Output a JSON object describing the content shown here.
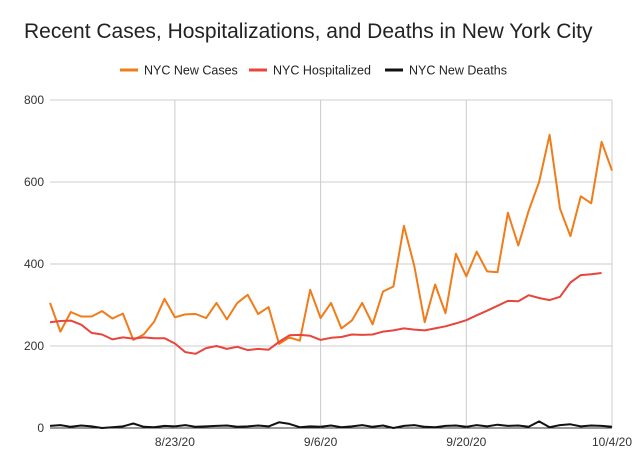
{
  "chart_data": {
    "type": "line",
    "title": "Recent Cases, Hospitalizations, and Deaths in New York City",
    "xlabel": "",
    "ylabel": "",
    "ylim": [
      0,
      800
    ],
    "yticks": [
      "0",
      "200",
      "400",
      "600",
      "800"
    ],
    "xticks": [
      {
        "index": 12,
        "label": "8/23/20"
      },
      {
        "index": 26,
        "label": "9/6/20"
      },
      {
        "index": 40,
        "label": "9/20/20"
      },
      {
        "index": 54,
        "label": "10/4/20"
      }
    ],
    "legend_position": "top",
    "grid": "vertical-and-horizontal",
    "series": [
      {
        "name": "NYC New Cases",
        "color": "#f07c1a",
        "values": [
          305,
          235,
          283,
          272,
          272,
          285,
          267,
          279,
          215,
          228,
          259,
          315,
          270,
          277,
          278,
          268,
          305,
          265,
          305,
          325,
          278,
          295,
          205,
          221,
          213,
          337,
          268,
          305,
          243,
          262,
          305,
          253,
          333,
          345,
          493,
          395,
          258,
          350,
          280,
          425,
          370,
          430,
          382,
          380,
          525,
          445,
          530,
          600,
          715,
          535,
          468,
          565,
          548,
          698,
          628
        ]
      },
      {
        "name": "NYC Hospitalized",
        "color": "#e8453c",
        "values": [
          258,
          261,
          262,
          252,
          232,
          228,
          216,
          221,
          218,
          221,
          219,
          219,
          206,
          185,
          181,
          195,
          200,
          193,
          198,
          190,
          193,
          191,
          210,
          226,
          227,
          225,
          215,
          220,
          222,
          228,
          227,
          228,
          235,
          238,
          243,
          240,
          238,
          243,
          248,
          255,
          263,
          275,
          286,
          298,
          310,
          309,
          324,
          317,
          312,
          320,
          355,
          373,
          375,
          378
        ]
      },
      {
        "name": "NYC New Deaths",
        "color": "#111111",
        "values": [
          5,
          7,
          3,
          6,
          4,
          0,
          2,
          4,
          11,
          3,
          2,
          5,
          4,
          7,
          3,
          4,
          5,
          6,
          3,
          4,
          6,
          4,
          14,
          10,
          2,
          4,
          3,
          6,
          2,
          4,
          7,
          3,
          6,
          0,
          5,
          7,
          3,
          2,
          5,
          6,
          3,
          7,
          4,
          8,
          5,
          6,
          3,
          16,
          2,
          7,
          9,
          4,
          6,
          5,
          3
        ]
      }
    ]
  }
}
